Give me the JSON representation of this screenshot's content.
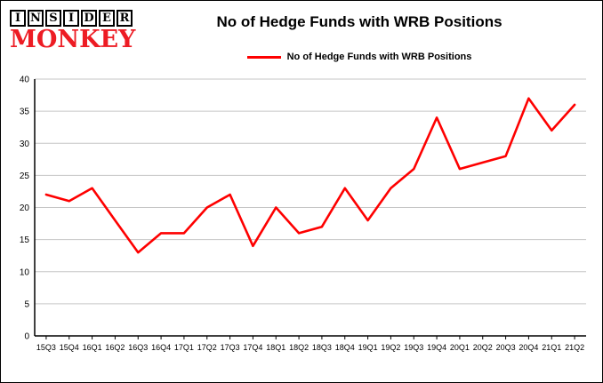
{
  "header": {
    "logo_line1": "INSIDER",
    "logo_line2": "MONKEY",
    "title": "No of Hedge Funds with WRB Positions",
    "legend_label": "No of Hedge Funds with WRB Positions"
  },
  "colors": {
    "line": "#fe0000",
    "grid": "#c6c6c6",
    "axis": "#000000",
    "logo_red": "#ed1c24"
  },
  "chart_data": {
    "type": "line",
    "title": "No of Hedge Funds with WRB Positions",
    "xlabel": "",
    "ylabel": "",
    "categories": [
      "15Q3",
      "15Q4",
      "16Q1",
      "16Q2",
      "16Q3",
      "16Q4",
      "17Q1",
      "17Q2",
      "17Q3",
      "17Q4",
      "18Q1",
      "18Q2",
      "18Q3",
      "18Q4",
      "19Q1",
      "19Q2",
      "19Q3",
      "19Q4",
      "20Q1",
      "20Q2",
      "20Q3",
      "20Q4",
      "21Q1",
      "21Q2"
    ],
    "values": [
      22,
      21,
      23,
      18,
      13,
      16,
      16,
      20,
      22,
      14,
      20,
      16,
      17,
      23,
      18,
      23,
      26,
      34,
      26,
      27,
      28,
      37,
      32,
      36
    ],
    "series_name": "No of Hedge Funds with WRB Positions",
    "ylim": [
      0,
      40
    ],
    "ytick_step": 5,
    "grid": true,
    "legend_position": "top"
  }
}
